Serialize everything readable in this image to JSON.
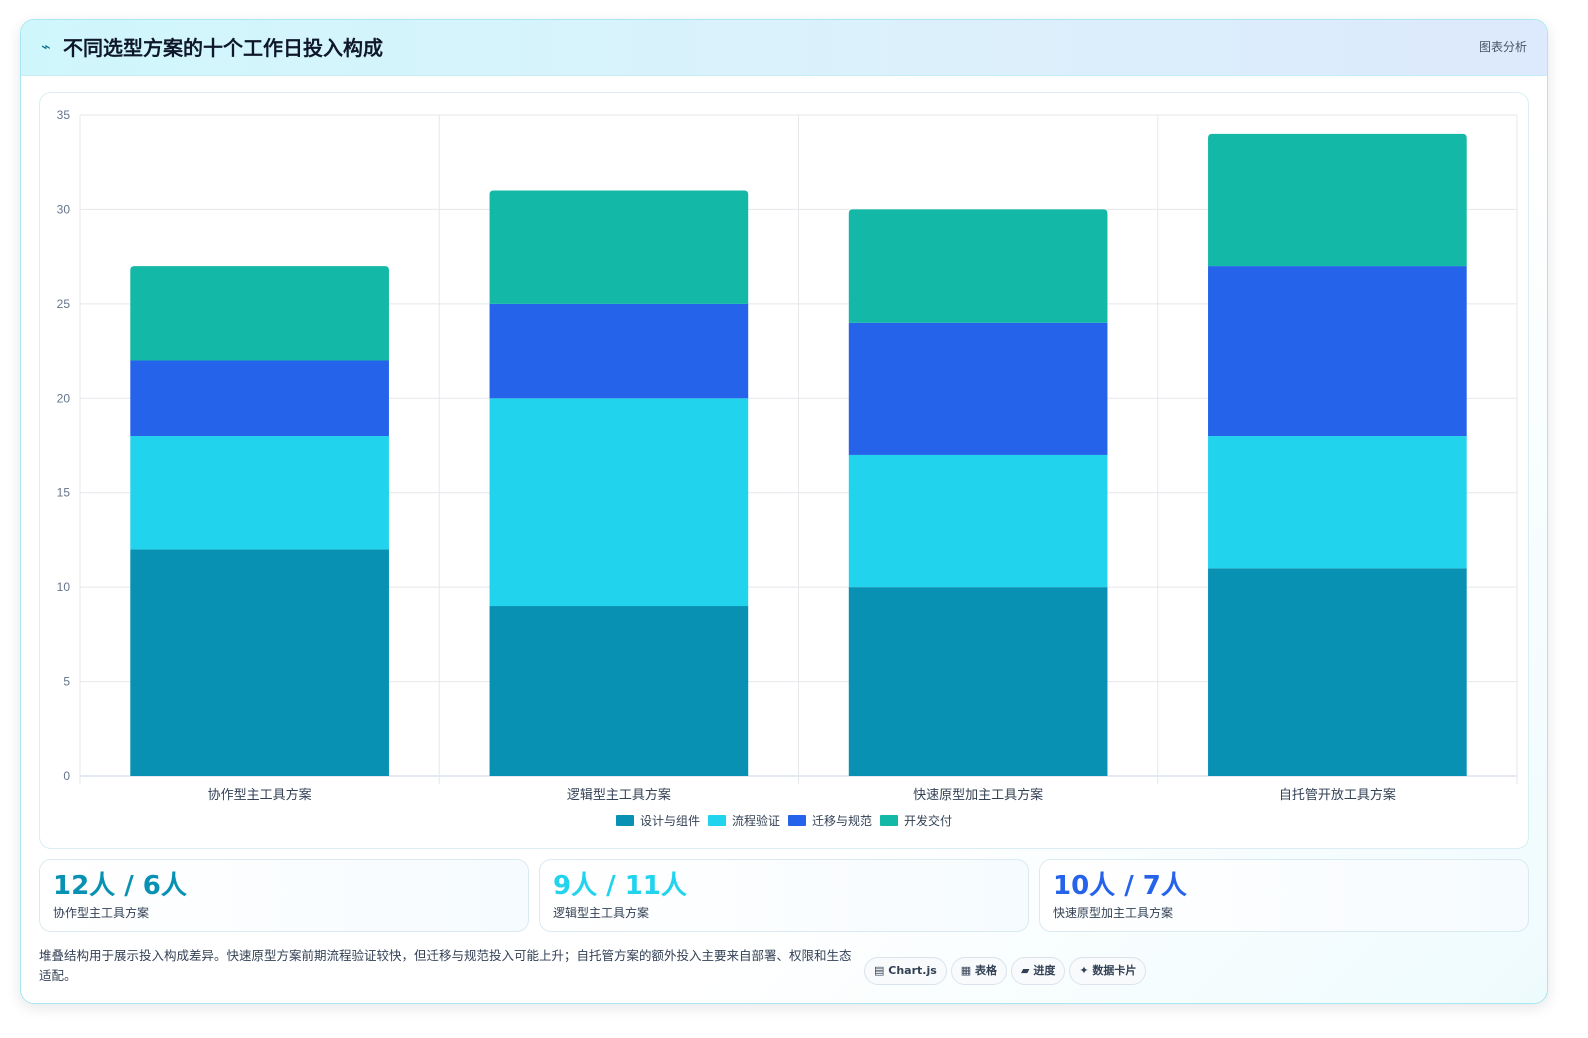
{
  "header": {
    "icon": "⌁",
    "title": "不同选型方案的十个工作日投入构成",
    "tag": "图表分析"
  },
  "chart_data": {
    "type": "bar",
    "stacked": true,
    "categories": [
      "协作型主工具方案",
      "逻辑型主工具方案",
      "快速原型加主工具方案",
      "自托管开放工具方案"
    ],
    "series": [
      {
        "name": "设计与组件",
        "color": "#0891b2",
        "values": [
          12,
          9,
          10,
          11
        ]
      },
      {
        "name": "流程验证",
        "color": "#22d3ee",
        "values": [
          6,
          11,
          7,
          7
        ]
      },
      {
        "name": "迁移与规范",
        "color": "#2563eb",
        "values": [
          4,
          5,
          7,
          9
        ]
      },
      {
        "name": "开发交付",
        "color": "#14b8a6",
        "values": [
          5,
          6,
          6,
          7
        ]
      }
    ],
    "ylim": [
      0,
      35
    ],
    "ytick_step": 5,
    "grid": true,
    "legend_position": "bottom"
  },
  "stats": [
    {
      "value": "12人 / 6人",
      "label": "协作型主工具方案",
      "color": "#0891b2"
    },
    {
      "value": "9人 / 11人",
      "label": "逻辑型主工具方案",
      "color": "#22d3ee"
    },
    {
      "value": "10人 / 7人",
      "label": "快速原型加主工具方案",
      "color": "#2563eb"
    }
  ],
  "footnote": "堆叠结构用于展示投入构成差异。快速原型方案前期流程验证较快，但迁移与规范投入可能上升；自托管方案的额外投入主要来自部署、权限和生态适配。",
  "chips": [
    {
      "icon": "▤",
      "label": "Chart.js"
    },
    {
      "icon": "▦",
      "label": "表格"
    },
    {
      "icon": "▰",
      "label": "进度"
    },
    {
      "icon": "✦",
      "label": "数据卡片"
    }
  ]
}
